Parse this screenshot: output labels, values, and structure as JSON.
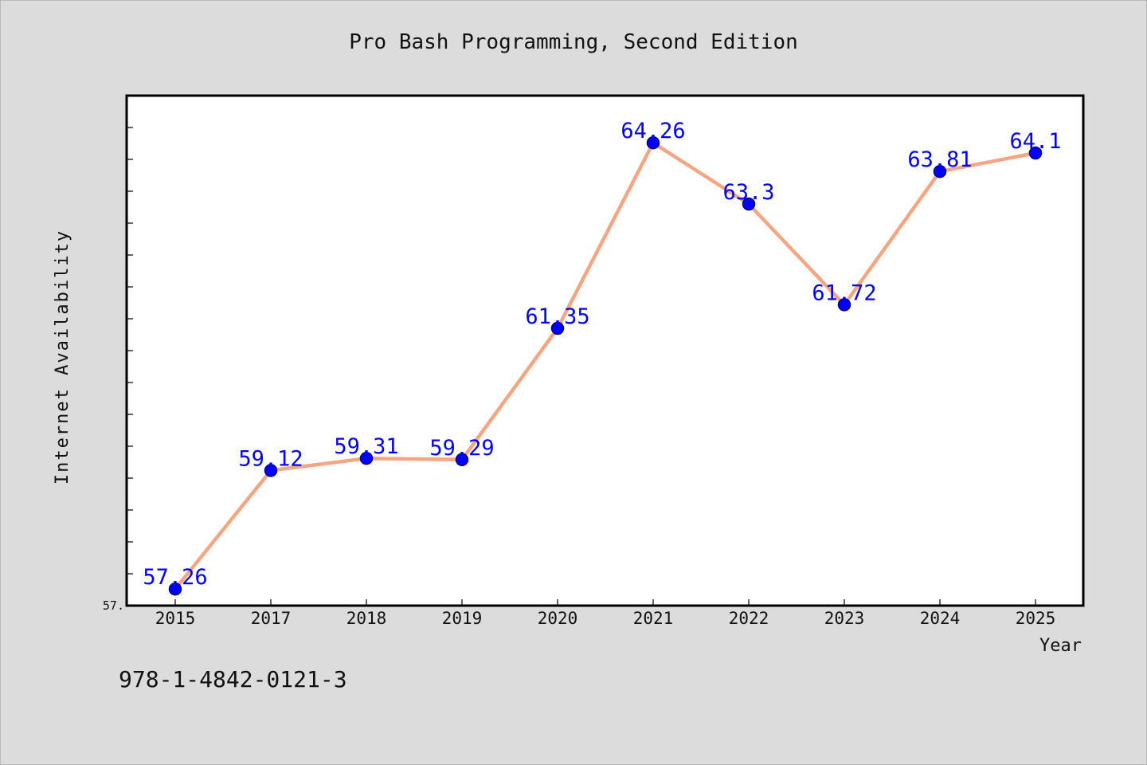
{
  "chart_data": {
    "type": "line",
    "title": "Pro Bash Programming, Second Edition",
    "xlabel": "Year",
    "ylabel": "Internet Availability",
    "categories": [
      "2015",
      "2017",
      "2018",
      "2019",
      "2020",
      "2021",
      "2022",
      "2023",
      "2024",
      "2025"
    ],
    "series": [
      {
        "values": [
          57.26,
          59.12,
          59.31,
          59.29,
          61.35,
          64.26,
          63.3,
          61.72,
          63.81,
          64.1
        ],
        "labels": [
          "57.26",
          "59.12",
          "59.31",
          "59.29",
          "61.35",
          "64.26",
          "63.3",
          "61.72",
          "63.81",
          "64.1"
        ]
      }
    ],
    "ylim": [
      57.0,
      65.0
    ],
    "ytick_labels": [
      "57."
    ],
    "grid": false,
    "colors": {
      "line": "#f4a582",
      "marker": "#0000ff",
      "marker_edge": "#00007f",
      "label": "#0000ff",
      "plot_bg": "#ffffff",
      "page_bg": "#dcdcdc"
    }
  },
  "footer": {
    "isbn": "978-1-4842-0121-3"
  }
}
